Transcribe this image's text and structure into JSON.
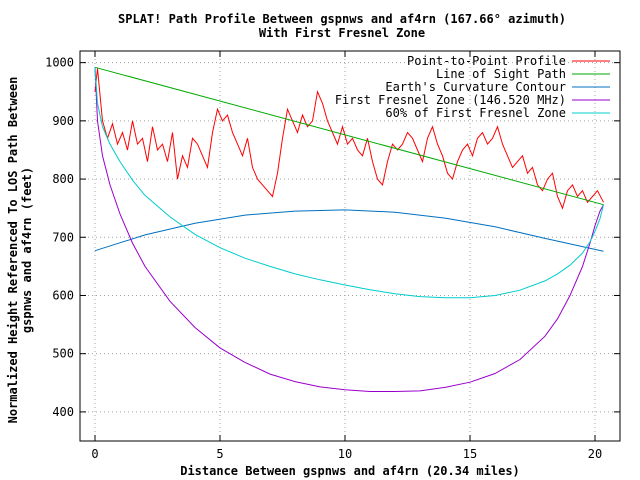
{
  "chart_data": {
    "type": "line",
    "title": "SPLAT! Path Profile Between gspnws and af4rn (167.66° azimuth)",
    "subtitle": "With First Fresnel Zone",
    "xlabel": "Distance Between gspnws and af4rn (20.34 miles)",
    "ylabel": "Normalized Height Referenced To LOS Path Between",
    "ylabel2": "gspnws and af4rn (feet)",
    "xlim": [
      -0.6,
      21
    ],
    "ylim": [
      350,
      1020
    ],
    "xticks": [
      0,
      5,
      10,
      15,
      20
    ],
    "yticks": [
      400,
      500,
      600,
      700,
      800,
      900,
      1000
    ],
    "grid": true,
    "legend_position": "top-right",
    "series": [
      {
        "name": "Point-to-Point Profile",
        "color": "#ff0000",
        "x": [
          0,
          0.1,
          0.3,
          0.5,
          0.7,
          0.9,
          1.1,
          1.3,
          1.5,
          1.7,
          1.9,
          2.1,
          2.3,
          2.5,
          2.7,
          2.9,
          3.1,
          3.3,
          3.5,
          3.7,
          3.9,
          4.1,
          4.3,
          4.5,
          4.7,
          4.9,
          5.1,
          5.3,
          5.5,
          5.7,
          5.9,
          6.1,
          6.3,
          6.5,
          6.7,
          6.9,
          7.1,
          7.3,
          7.5,
          7.7,
          7.9,
          8.1,
          8.3,
          8.5,
          8.7,
          8.9,
          9.1,
          9.3,
          9.5,
          9.7,
          9.9,
          10.1,
          10.3,
          10.5,
          10.7,
          10.9,
          11.1,
          11.3,
          11.5,
          11.7,
          11.9,
          12.1,
          12.3,
          12.5,
          12.7,
          12.9,
          13.1,
          13.3,
          13.5,
          13.7,
          13.9,
          14.1,
          14.3,
          14.5,
          14.7,
          14.9,
          15.1,
          15.3,
          15.5,
          15.7,
          15.9,
          16.1,
          16.3,
          16.5,
          16.7,
          16.9,
          17.1,
          17.3,
          17.5,
          17.7,
          17.9,
          18.1,
          18.3,
          18.5,
          18.7,
          18.9,
          19.1,
          19.3,
          19.5,
          19.7,
          19.9,
          20.1,
          20.34
        ],
        "values": [
          950,
          990,
          900,
          870,
          895,
          860,
          880,
          850,
          900,
          860,
          870,
          830,
          890,
          850,
          860,
          830,
          880,
          800,
          840,
          820,
          870,
          860,
          840,
          820,
          880,
          920,
          900,
          910,
          880,
          860,
          840,
          870,
          820,
          800,
          790,
          780,
          770,
          810,
          870,
          920,
          900,
          880,
          910,
          890,
          900,
          950,
          930,
          900,
          880,
          860,
          890,
          860,
          870,
          850,
          840,
          870,
          830,
          800,
          790,
          830,
          860,
          850,
          860,
          880,
          870,
          850,
          830,
          870,
          890,
          860,
          840,
          810,
          800,
          830,
          850,
          860,
          840,
          870,
          880,
          860,
          870,
          890,
          860,
          840,
          820,
          830,
          840,
          810,
          820,
          790,
          780,
          800,
          810,
          770,
          750,
          780,
          790,
          770,
          780,
          760,
          770,
          780,
          760
        ]
      },
      {
        "name": "Line of Sight Path",
        "color": "#00aa00",
        "x": [
          0,
          20.34
        ],
        "values": [
          992,
          756
        ]
      },
      {
        "name": "Earth's Curvature Contour",
        "color": "#0070c0",
        "x": [
          0,
          2,
          4,
          6,
          8,
          10,
          12,
          14,
          16,
          18,
          20.34
        ],
        "values": [
          677,
          704,
          724,
          738,
          745,
          747,
          743,
          733,
          718,
          698,
          676
        ]
      },
      {
        "name": "First Fresnel Zone (146.520 MHz)",
        "color": "#9900cc",
        "x": [
          0,
          0.1,
          0.3,
          0.6,
          1,
          1.5,
          2,
          3,
          4,
          5,
          6,
          7,
          8,
          9,
          10,
          11,
          12,
          13,
          14,
          15,
          16,
          17,
          18,
          18.5,
          19,
          19.5,
          19.8,
          20.0,
          20.2,
          20.34
        ],
        "values": [
          992,
          900,
          840,
          790,
          740,
          690,
          650,
          590,
          545,
          510,
          485,
          465,
          452,
          443,
          438,
          435,
          435,
          436,
          442,
          451,
          466,
          490,
          530,
          560,
          600,
          650,
          690,
          720,
          745,
          756
        ]
      },
      {
        "name": "60% of First Fresnel Zone",
        "color": "#00cccc",
        "x": [
          0,
          0.1,
          0.3,
          0.6,
          1,
          1.5,
          2,
          3,
          4,
          5,
          6,
          7,
          8,
          9,
          10,
          11,
          12,
          13,
          14,
          15,
          16,
          17,
          18,
          18.5,
          19,
          19.5,
          19.8,
          20.0,
          20.2,
          20.34
        ],
        "values": [
          992,
          930,
          890,
          860,
          830,
          798,
          772,
          735,
          705,
          682,
          664,
          650,
          637,
          627,
          618,
          610,
          603,
          598,
          596,
          596,
          600,
          609,
          625,
          637,
          652,
          673,
          692,
          710,
          732,
          756
        ]
      }
    ]
  }
}
